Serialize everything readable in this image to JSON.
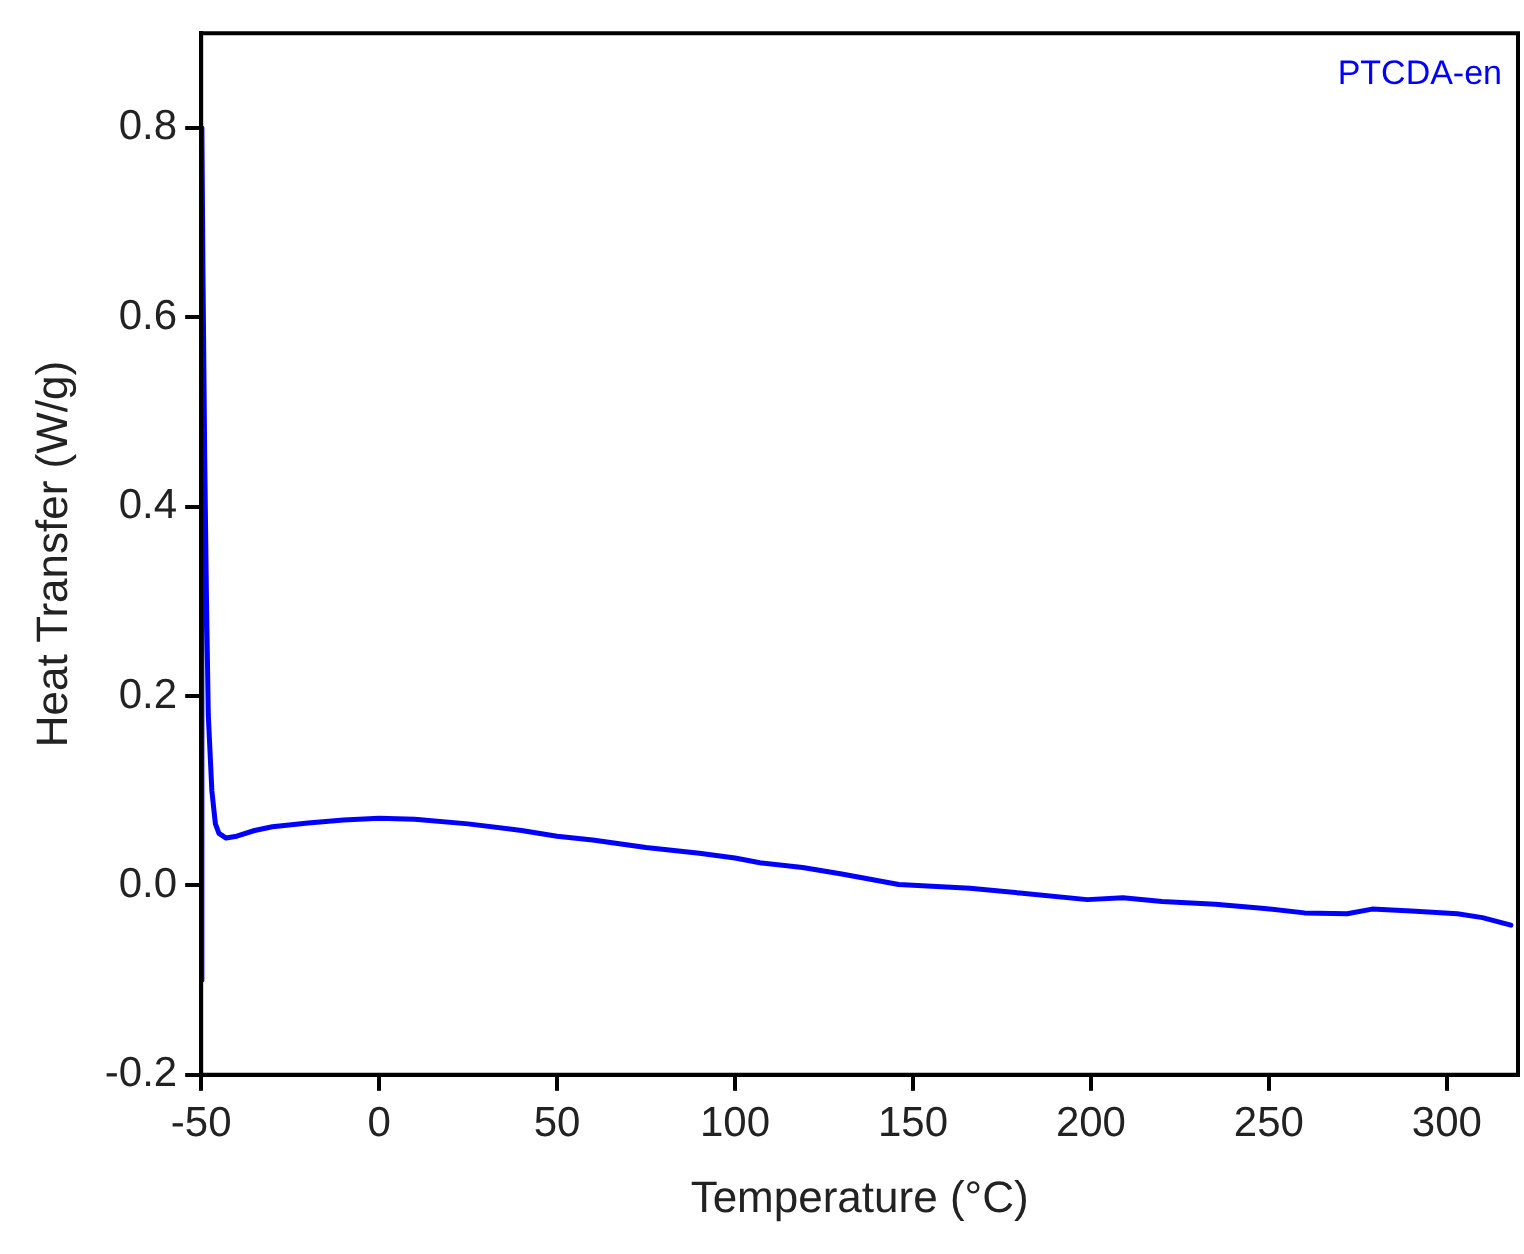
{
  "chart_data": {
    "type": "line",
    "xlabel": "Temperature (°C)",
    "ylabel": "Heat Transfer (W/g)",
    "xlim": [
      -50,
      320
    ],
    "xticks": [
      -50,
      0,
      50,
      100,
      150,
      200,
      250,
      300
    ],
    "ylim": [
      -0.2,
      0.9
    ],
    "yticks": [
      -0.2,
      {
        "value": 0,
        "label": "0.0"
      },
      0.2,
      0.4,
      0.6,
      0.8
    ],
    "grid": false,
    "legend": "top right",
    "marker": "none",
    "line_style": "solid",
    "series": [
      {
        "name": "PTCDA-en",
        "color": "#0000ff",
        "x": [
          -50,
          -49.8,
          -49.5,
          -49,
          -48.5,
          -48,
          -47,
          -46,
          -45,
          -43,
          -40,
          -35,
          -30,
          -20,
          -10,
          0,
          10,
          25,
          40,
          50,
          60,
          75,
          90,
          100,
          107,
          119,
          130,
          146,
          166,
          180,
          199,
          209,
          220,
          235,
          248,
          260,
          272,
          279,
          290,
          303,
          310,
          318
        ],
        "values": [
          -0.1,
          0.8,
          0.65,
          0.45,
          0.3,
          0.18,
          0.1,
          0.065,
          0.055,
          0.05,
          0.052,
          0.058,
          0.062,
          0.066,
          0.069,
          0.071,
          0.07,
          0.065,
          0.058,
          0.052,
          0.048,
          0.04,
          0.034,
          0.029,
          0.024,
          0.019,
          0.012,
          0.001,
          -0.003,
          -0.008,
          -0.015,
          -0.013,
          -0.017,
          -0.02,
          -0.024,
          -0.029,
          -0.03,
          -0.025,
          -0.027,
          -0.03,
          -0.034,
          -0.042
        ]
      }
    ]
  }
}
